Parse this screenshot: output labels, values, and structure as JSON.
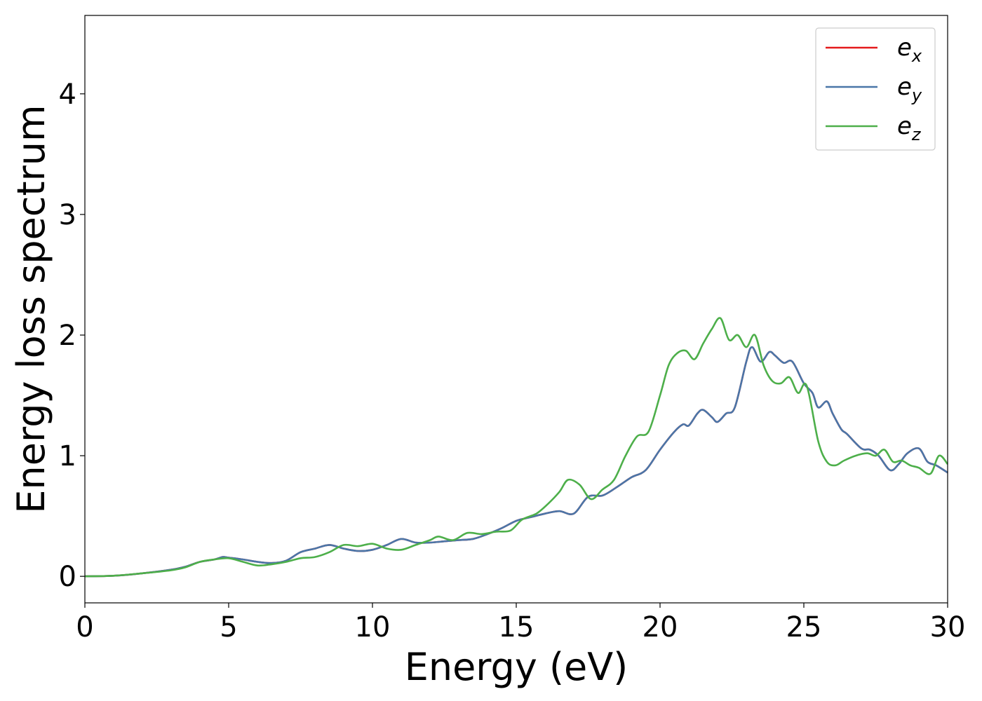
{
  "chart_data": {
    "type": "line",
    "xlabel": "Energy (eV)",
    "ylabel": "Energy loss spectrum",
    "xlim": [
      0,
      30
    ],
    "ylim": [
      -0.22,
      4.65
    ],
    "xticks": [
      0,
      5,
      10,
      15,
      20,
      25,
      30
    ],
    "yticks": [
      0,
      1,
      2,
      3,
      4
    ],
    "grid": false,
    "legend_position": "top-right",
    "series": [
      {
        "name": "e_x",
        "label_base": "e",
        "label_sub": "x",
        "color": "#e41a1c",
        "x": [
          0,
          1,
          2,
          3,
          3.5,
          4,
          4.5,
          4.8,
          5,
          5.5,
          6,
          6.5,
          7,
          7.5,
          8,
          8.5,
          9,
          9.5,
          10,
          10.5,
          11,
          11.5,
          12,
          12.5,
          13,
          13.5,
          14,
          14.5,
          15,
          15.5,
          16,
          16.5,
          17,
          17.5,
          18,
          18.5,
          19,
          19.5,
          20,
          20.5,
          20.8,
          21,
          21.3,
          21.5,
          21.8,
          22,
          22.3,
          22.6,
          23,
          23.2,
          23.5,
          23.8,
          24,
          24.3,
          24.6,
          25,
          25.3,
          25.5,
          25.8,
          26,
          26.3,
          26.5,
          27,
          27.3,
          27.6,
          28,
          28.3,
          28.6,
          29,
          29.3,
          29.6,
          30
        ],
        "y": [
          0,
          0.005,
          0.025,
          0.055,
          0.08,
          0.12,
          0.14,
          0.16,
          0.155,
          0.14,
          0.12,
          0.11,
          0.13,
          0.2,
          0.23,
          0.26,
          0.23,
          0.21,
          0.22,
          0.26,
          0.31,
          0.28,
          0.28,
          0.29,
          0.3,
          0.31,
          0.35,
          0.4,
          0.46,
          0.49,
          0.52,
          0.54,
          0.52,
          0.66,
          0.67,
          0.74,
          0.82,
          0.88,
          1.05,
          1.2,
          1.26,
          1.25,
          1.35,
          1.38,
          1.32,
          1.28,
          1.35,
          1.4,
          1.78,
          1.9,
          1.78,
          1.86,
          1.83,
          1.77,
          1.78,
          1.6,
          1.52,
          1.4,
          1.45,
          1.35,
          1.22,
          1.18,
          1.06,
          1.05,
          1.0,
          0.88,
          0.93,
          1.02,
          1.06,
          0.95,
          0.92,
          0.86
        ]
      },
      {
        "name": "e_y",
        "label_base": "e",
        "label_sub": "y",
        "color": "#4a76a8",
        "x": [
          0,
          1,
          2,
          3,
          3.5,
          4,
          4.5,
          4.8,
          5,
          5.5,
          6,
          6.5,
          7,
          7.5,
          8,
          8.5,
          9,
          9.5,
          10,
          10.5,
          11,
          11.5,
          12,
          12.5,
          13,
          13.5,
          14,
          14.5,
          15,
          15.5,
          16,
          16.5,
          17,
          17.5,
          18,
          18.5,
          19,
          19.5,
          20,
          20.5,
          20.8,
          21,
          21.3,
          21.5,
          21.8,
          22,
          22.3,
          22.6,
          23,
          23.2,
          23.5,
          23.8,
          24,
          24.3,
          24.6,
          25,
          25.3,
          25.5,
          25.8,
          26,
          26.3,
          26.5,
          27,
          27.3,
          27.6,
          28,
          28.3,
          28.6,
          29,
          29.3,
          29.6,
          30
        ],
        "y": [
          0,
          0.005,
          0.025,
          0.055,
          0.08,
          0.12,
          0.14,
          0.16,
          0.155,
          0.14,
          0.12,
          0.11,
          0.13,
          0.2,
          0.23,
          0.26,
          0.23,
          0.21,
          0.22,
          0.26,
          0.31,
          0.28,
          0.28,
          0.29,
          0.3,
          0.31,
          0.35,
          0.4,
          0.46,
          0.49,
          0.52,
          0.54,
          0.52,
          0.66,
          0.67,
          0.74,
          0.82,
          0.88,
          1.05,
          1.2,
          1.26,
          1.25,
          1.35,
          1.38,
          1.32,
          1.28,
          1.35,
          1.4,
          1.78,
          1.9,
          1.78,
          1.86,
          1.83,
          1.77,
          1.78,
          1.6,
          1.52,
          1.4,
          1.45,
          1.35,
          1.22,
          1.18,
          1.06,
          1.05,
          1.0,
          0.88,
          0.93,
          1.02,
          1.06,
          0.95,
          0.92,
          0.86
        ]
      },
      {
        "name": "e_z",
        "label_base": "e",
        "label_sub": "z",
        "color": "#4daf4a",
        "x": [
          0,
          1,
          2,
          3,
          3.5,
          4,
          4.5,
          5,
          5.5,
          6,
          6.5,
          7,
          7.5,
          8,
          8.5,
          9,
          9.5,
          10,
          10.5,
          11,
          11.5,
          12,
          12.3,
          12.8,
          13.3,
          13.8,
          14.3,
          14.8,
          15.2,
          15.7,
          16.1,
          16.5,
          16.8,
          17.2,
          17.6,
          18,
          18.4,
          18.8,
          19.2,
          19.6,
          20,
          20.3,
          20.6,
          20.9,
          21.2,
          21.5,
          21.8,
          22.1,
          22.4,
          22.7,
          23,
          23.3,
          23.6,
          23.9,
          24.2,
          24.5,
          24.8,
          25.1,
          25.5,
          25.8,
          26.1,
          26.4,
          26.8,
          27.2,
          27.5,
          27.8,
          28.1,
          28.4,
          28.7,
          29,
          29.4,
          29.7,
          30
        ],
        "y": [
          0,
          0.005,
          0.025,
          0.05,
          0.075,
          0.12,
          0.14,
          0.15,
          0.12,
          0.09,
          0.1,
          0.12,
          0.15,
          0.16,
          0.2,
          0.26,
          0.25,
          0.27,
          0.23,
          0.22,
          0.26,
          0.3,
          0.33,
          0.3,
          0.36,
          0.35,
          0.37,
          0.38,
          0.47,
          0.52,
          0.6,
          0.7,
          0.8,
          0.76,
          0.64,
          0.72,
          0.8,
          1.0,
          1.16,
          1.2,
          1.5,
          1.75,
          1.85,
          1.87,
          1.8,
          1.93,
          2.05,
          2.14,
          1.96,
          2.0,
          1.9,
          2.0,
          1.75,
          1.62,
          1.6,
          1.65,
          1.52,
          1.58,
          1.12,
          0.95,
          0.92,
          0.96,
          1.0,
          1.02,
          1.0,
          1.05,
          0.95,
          0.96,
          0.92,
          0.9,
          0.85,
          1.0,
          0.93
        ]
      }
    ]
  }
}
